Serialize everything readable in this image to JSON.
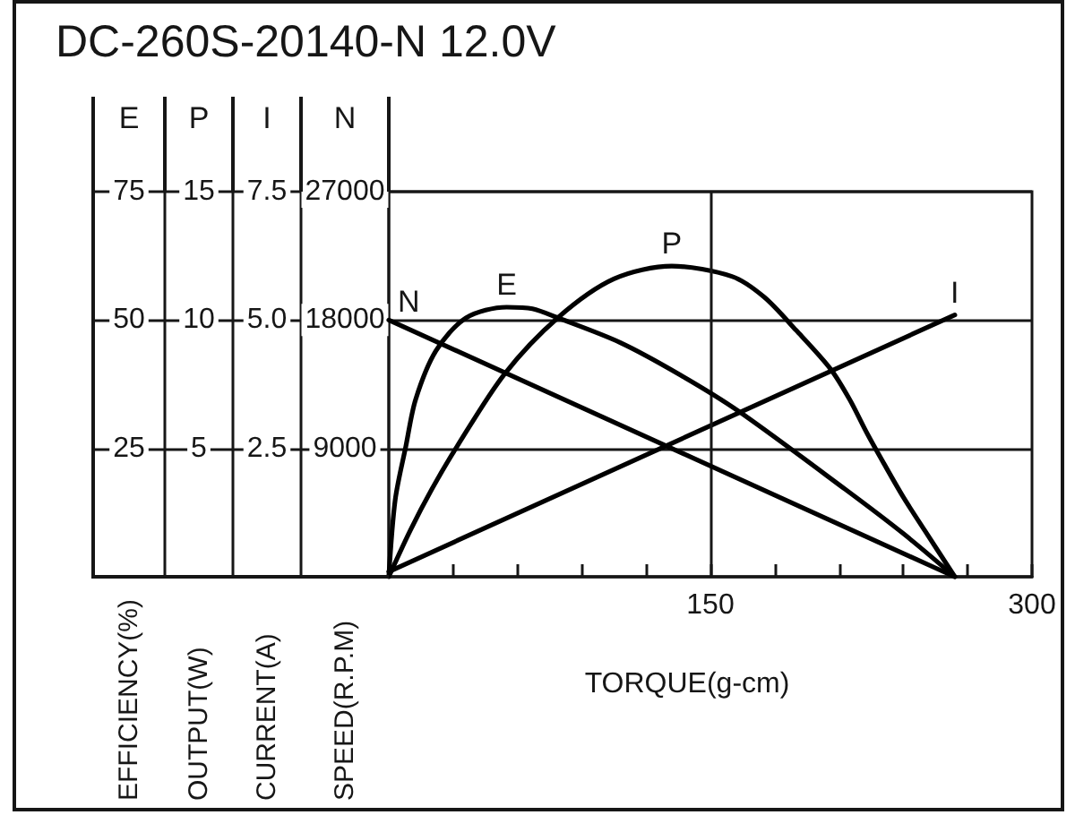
{
  "chart_data": [
    {
      "type": "line",
      "title": "DC-260S-20140-N 12.0V",
      "xlabel": "TORQUE(g-cm)",
      "ylabel": "CURRENT(A)",
      "y3label": "OUTPUT(W)",
      "series": [
        {
          "name": "I",
          "color": "#000000",
          "x": [
            0,
            264
          ],
          "values": [
            0.1,
            5.1
          ]
        },
        {
          "name": "P",
          "axis": "y3",
          "color": "#000000",
          "x": [
            0,
            10,
            20,
            32,
            54,
            79,
            105,
            132,
            160,
            175,
            190,
            206,
            215,
            223,
            231,
            240,
            250,
            264
          ],
          "values": [
            0,
            1.8,
            3.4,
            5.1,
            7.9,
            10.1,
            11.6,
            12.1,
            11.7,
            10.9,
            9.6,
            8.1,
            6.9,
            5.6,
            4.4,
            3.1,
            1.8,
            0
          ]
        }
      ],
      "xlim": [
        0,
        300
      ],
      "xticks": [
        {
          "value": 30,
          "label": null
        },
        {
          "value": 60,
          "label": null
        },
        {
          "value": 90,
          "label": null
        },
        {
          "value": 120,
          "label": null
        },
        150,
        {
          "value": 180,
          "label": null
        },
        {
          "value": 210,
          "label": null
        },
        {
          "value": 240,
          "label": null
        },
        {
          "value": 270,
          "label": null
        },
        300
      ],
      "ylim": [
        0,
        7.5
      ],
      "yticks": [
        2.5,
        {
          "value": 5,
          "label": "5.0"
        },
        7.5
      ],
      "y3lim": [
        0,
        15
      ],
      "y3ticks": [
        5,
        10,
        15
      ],
      "grid": "y",
      "ref_lines": [
        {
          "axis": "x",
          "value": 150
        }
      ]
    },
    {
      "type": "line",
      "ylabel": "SPEED(R.P.M)",
      "y3label": "EFFICIENCY(%)",
      "series": [
        {
          "name": "N",
          "color": "#000000",
          "x": [
            0,
            264
          ],
          "values": [
            18000,
            0
          ]
        },
        {
          "name": "E",
          "axis": "y3",
          "color": "#000000",
          "x": [
            0,
            3,
            8,
            12.5,
            22,
            36,
            55,
            67,
            79,
            108,
            136,
            163,
            213,
            240,
            264
          ],
          "values": [
            0,
            15,
            25.5,
            34.5,
            44,
            50.4,
            52.5,
            52.2,
            50.4,
            45.6,
            39.3,
            32.3,
            17,
            8.4,
            0
          ]
        }
      ],
      "xlim": [
        0,
        300
      ],
      "ylim": [
        0,
        27000
      ],
      "yticks": [
        9000,
        18000,
        27000
      ],
      "y3lim": [
        0,
        75
      ],
      "y3ticks": [
        25,
        50,
        75
      ],
      "tick_labels": "y"
    }
  ]
}
